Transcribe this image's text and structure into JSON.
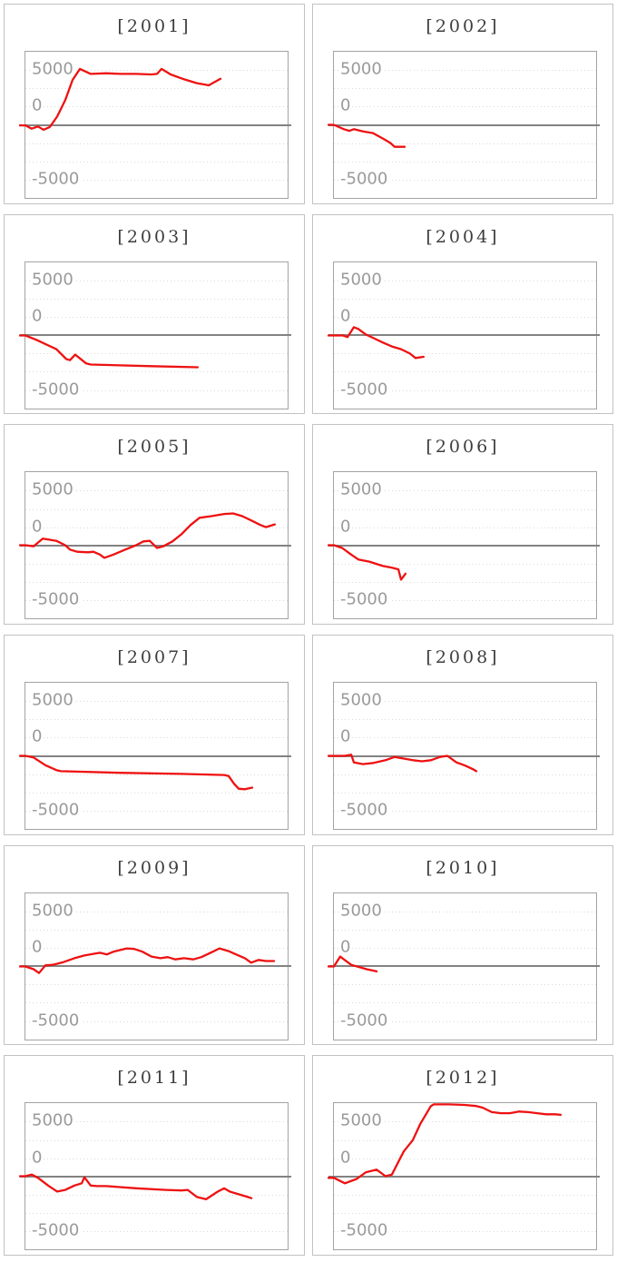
{
  "chart_data": {
    "type": "line",
    "layout": "small-multiples 2 columns x 6 rows, one panel per year",
    "title": "",
    "xlabel": "",
    "ylabel": "",
    "x_unit": "fraction of panel width (no x tick labels shown)",
    "yticks": [
      5000,
      0,
      -5000
    ],
    "ytick_labels": [
      "5000",
      "0",
      "-5000"
    ],
    "ylim": [
      -6667,
      6667
    ],
    "grid": "dotted horizontal gridlines every 1667 units, solid line at 0",
    "legend": "none",
    "series_color": "#ee1111",
    "panels": [
      {
        "title": "[2001]",
        "points": [
          [
            0,
            -50
          ],
          [
            0.024,
            -350
          ],
          [
            0.048,
            -150
          ],
          [
            0.069,
            -450
          ],
          [
            0.093,
            -200
          ],
          [
            0.121,
            750
          ],
          [
            0.152,
            2250
          ],
          [
            0.18,
            4100
          ],
          [
            0.208,
            5100
          ],
          [
            0.249,
            4650
          ],
          [
            0.308,
            4700
          ],
          [
            0.363,
            4650
          ],
          [
            0.422,
            4650
          ],
          [
            0.481,
            4600
          ],
          [
            0.502,
            4650
          ],
          [
            0.519,
            5100
          ],
          [
            0.554,
            4600
          ],
          [
            0.606,
            4150
          ],
          [
            0.654,
            3800
          ],
          [
            0.689,
            3650
          ],
          [
            0.699,
            3600
          ],
          [
            0.744,
            4200
          ]
        ]
      },
      {
        "title": "[2002]",
        "points": [
          [
            0,
            0
          ],
          [
            0.038,
            -400
          ],
          [
            0.059,
            -550
          ],
          [
            0.076,
            -400
          ],
          [
            0.111,
            -600
          ],
          [
            0.149,
            -750
          ],
          [
            0.187,
            -1250
          ],
          [
            0.215,
            -1650
          ],
          [
            0.232,
            -2000
          ],
          [
            0.27,
            -2000
          ]
        ]
      },
      {
        "title": "[2003]",
        "points": [
          [
            0,
            0
          ],
          [
            0.042,
            -400
          ],
          [
            0.118,
            -1250
          ],
          [
            0.156,
            -2150
          ],
          [
            0.17,
            -2250
          ],
          [
            0.19,
            -1750
          ],
          [
            0.232,
            -2550
          ],
          [
            0.249,
            -2650
          ],
          [
            0.48,
            -2800
          ],
          [
            0.657,
            -2900
          ]
        ]
      },
      {
        "title": "[2004]",
        "points": [
          [
            0,
            0
          ],
          [
            0.035,
            0
          ],
          [
            0.052,
            -150
          ],
          [
            0.076,
            750
          ],
          [
            0.093,
            600
          ],
          [
            0.121,
            100
          ],
          [
            0.152,
            -250
          ],
          [
            0.187,
            -650
          ],
          [
            0.221,
            -1000
          ],
          [
            0.256,
            -1250
          ],
          [
            0.29,
            -1650
          ],
          [
            0.311,
            -2050
          ],
          [
            0.342,
            -1950
          ]
        ]
      },
      {
        "title": "[2005]",
        "points": [
          [
            0,
            0
          ],
          [
            0.031,
            -100
          ],
          [
            0.066,
            600
          ],
          [
            0.093,
            500
          ],
          [
            0.118,
            400
          ],
          [
            0.152,
            0
          ],
          [
            0.17,
            -400
          ],
          [
            0.197,
            -600
          ],
          [
            0.239,
            -650
          ],
          [
            0.259,
            -600
          ],
          [
            0.284,
            -850
          ],
          [
            0.301,
            -1150
          ],
          [
            0.336,
            -850
          ],
          [
            0.381,
            -400
          ],
          [
            0.422,
            0
          ],
          [
            0.45,
            350
          ],
          [
            0.474,
            400
          ],
          [
            0.502,
            -250
          ],
          [
            0.526,
            -100
          ],
          [
            0.561,
            350
          ],
          [
            0.595,
            1000
          ],
          [
            0.63,
            1850
          ],
          [
            0.664,
            2500
          ],
          [
            0.709,
            2650
          ],
          [
            0.758,
            2850
          ],
          [
            0.792,
            2900
          ],
          [
            0.827,
            2650
          ],
          [
            0.862,
            2250
          ],
          [
            0.896,
            1850
          ],
          [
            0.917,
            1650
          ],
          [
            0.951,
            1900
          ]
        ]
      },
      {
        "title": "[2006]",
        "points": [
          [
            0,
            0
          ],
          [
            0.031,
            -250
          ],
          [
            0.069,
            -900
          ],
          [
            0.093,
            -1300
          ],
          [
            0.135,
            -1500
          ],
          [
            0.187,
            -1900
          ],
          [
            0.221,
            -2050
          ],
          [
            0.246,
            -2200
          ],
          [
            0.256,
            -3150
          ],
          [
            0.273,
            -2600
          ]
        ]
      },
      {
        "title": "[2007]",
        "points": [
          [
            0,
            0
          ],
          [
            0.031,
            -150
          ],
          [
            0.076,
            -850
          ],
          [
            0.118,
            -1300
          ],
          [
            0.135,
            -1400
          ],
          [
            0.363,
            -1550
          ],
          [
            0.595,
            -1650
          ],
          [
            0.758,
            -1750
          ],
          [
            0.775,
            -1850
          ],
          [
            0.796,
            -2550
          ],
          [
            0.813,
            -3000
          ],
          [
            0.837,
            -3050
          ],
          [
            0.865,
            -2900
          ]
        ]
      },
      {
        "title": "[2008]",
        "points": [
          [
            0,
            0
          ],
          [
            0.042,
            0
          ],
          [
            0.066,
            100
          ],
          [
            0.076,
            -600
          ],
          [
            0.111,
            -750
          ],
          [
            0.152,
            -650
          ],
          [
            0.197,
            -400
          ],
          [
            0.232,
            -100
          ],
          [
            0.266,
            -250
          ],
          [
            0.301,
            -400
          ],
          [
            0.336,
            -500
          ],
          [
            0.37,
            -400
          ],
          [
            0.405,
            -100
          ],
          [
            0.433,
            0
          ],
          [
            0.467,
            -600
          ],
          [
            0.502,
            -900
          ],
          [
            0.533,
            -1250
          ],
          [
            0.543,
            -1400
          ]
        ]
      },
      {
        "title": "[2009]",
        "points": [
          [
            0,
            0
          ],
          [
            0.031,
            -250
          ],
          [
            0.052,
            -600
          ],
          [
            0.076,
            100
          ],
          [
            0.104,
            150
          ],
          [
            0.145,
            400
          ],
          [
            0.187,
            750
          ],
          [
            0.225,
            1000
          ],
          [
            0.259,
            1150
          ],
          [
            0.284,
            1250
          ],
          [
            0.311,
            1100
          ],
          [
            0.336,
            1350
          ],
          [
            0.387,
            1650
          ],
          [
            0.415,
            1600
          ],
          [
            0.446,
            1350
          ],
          [
            0.481,
            900
          ],
          [
            0.515,
            750
          ],
          [
            0.543,
            850
          ],
          [
            0.571,
            650
          ],
          [
            0.605,
            750
          ],
          [
            0.64,
            650
          ],
          [
            0.671,
            850
          ],
          [
            0.706,
            1250
          ],
          [
            0.74,
            1650
          ],
          [
            0.775,
            1400
          ],
          [
            0.803,
            1100
          ],
          [
            0.837,
            750
          ],
          [
            0.861,
            350
          ],
          [
            0.889,
            600
          ],
          [
            0.917,
            500
          ],
          [
            0.948,
            500
          ]
        ]
      },
      {
        "title": "[2010]",
        "points": [
          [
            0,
            0
          ],
          [
            0.024,
            900
          ],
          [
            0.066,
            150
          ],
          [
            0.125,
            -250
          ],
          [
            0.163,
            -450
          ]
        ]
      },
      {
        "title": "[2011]",
        "points": [
          [
            0,
            0
          ],
          [
            0.024,
            150
          ],
          [
            0.048,
            -150
          ],
          [
            0.087,
            -850
          ],
          [
            0.121,
            -1400
          ],
          [
            0.152,
            -1250
          ],
          [
            0.187,
            -850
          ],
          [
            0.215,
            -650
          ],
          [
            0.225,
            -100
          ],
          [
            0.249,
            -850
          ],
          [
            0.273,
            -900
          ],
          [
            0.308,
            -900
          ],
          [
            0.422,
            -1100
          ],
          [
            0.536,
            -1250
          ],
          [
            0.595,
            -1300
          ],
          [
            0.619,
            -1250
          ],
          [
            0.654,
            -1900
          ],
          [
            0.689,
            -2100
          ],
          [
            0.734,
            -1400
          ],
          [
            0.758,
            -1100
          ],
          [
            0.779,
            -1400
          ],
          [
            0.813,
            -1650
          ],
          [
            0.848,
            -1900
          ],
          [
            0.862,
            -2000
          ]
        ]
      },
      {
        "title": "[2012]",
        "points": [
          [
            0,
            -150
          ],
          [
            0.042,
            -650
          ],
          [
            0.087,
            -250
          ],
          [
            0.121,
            350
          ],
          [
            0.163,
            600
          ],
          [
            0.197,
            0
          ],
          [
            0.221,
            150
          ],
          [
            0.266,
            2250
          ],
          [
            0.301,
            3300
          ],
          [
            0.329,
            4750
          ],
          [
            0.37,
            6400
          ],
          [
            0.381,
            6550
          ],
          [
            0.439,
            6550
          ],
          [
            0.498,
            6500
          ],
          [
            0.543,
            6400
          ],
          [
            0.567,
            6250
          ],
          [
            0.602,
            5850
          ],
          [
            0.637,
            5750
          ],
          [
            0.671,
            5750
          ],
          [
            0.706,
            5900
          ],
          [
            0.74,
            5850
          ],
          [
            0.775,
            5750
          ],
          [
            0.809,
            5650
          ],
          [
            0.844,
            5650
          ],
          [
            0.865,
            5600
          ]
        ]
      }
    ]
  },
  "colors": {
    "series_red": "#ee1111",
    "zero_line": "#828282",
    "gridline": "#d9d9d9",
    "plot_border": "#a3a3a3",
    "cell_border": "#c2c2c2",
    "axis_label": "#9a9a9a",
    "title_text": "#3d3d3d",
    "background": "#ffffff"
  }
}
